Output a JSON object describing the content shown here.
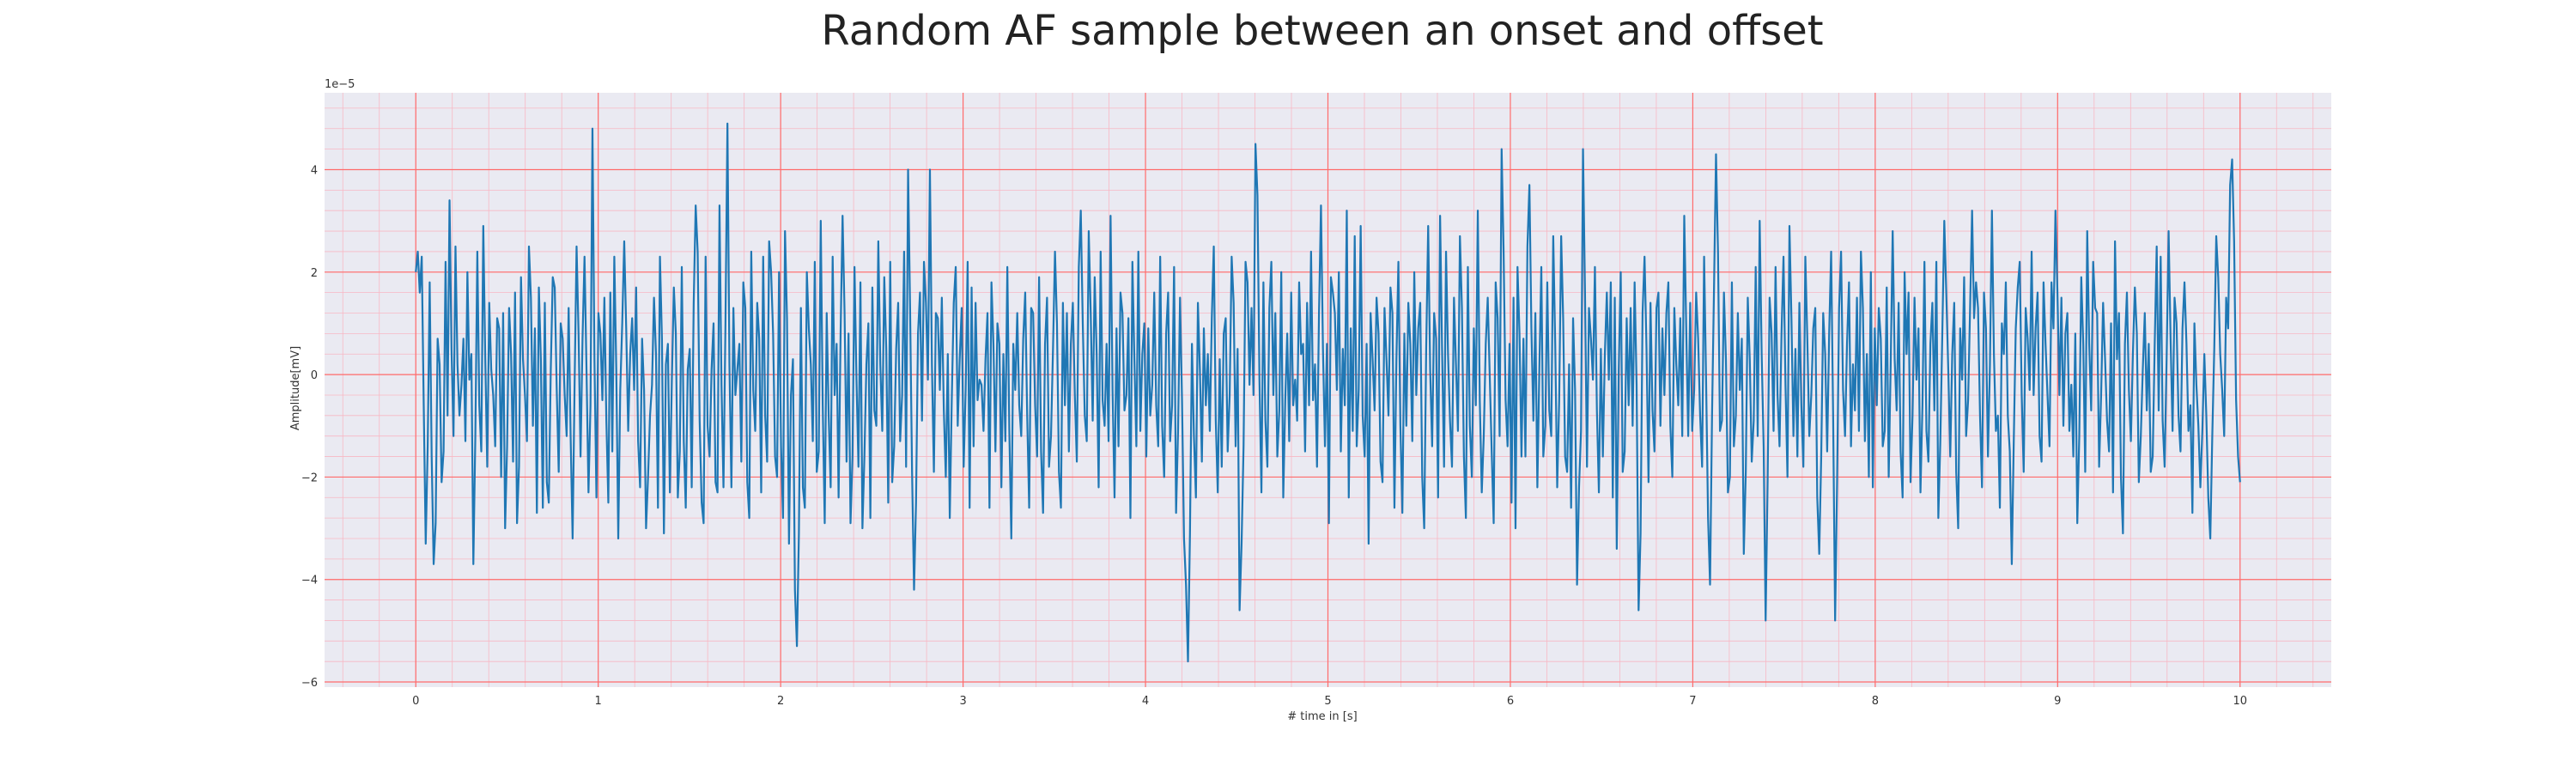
{
  "colors": {
    "plot_background": "#eaeaf2",
    "major_grid": "#ff6b6b",
    "minor_grid": "#f8b8c4",
    "line": "#1f77b4",
    "text": "#333333"
  },
  "chart_data": {
    "type": "line",
    "title": "Random AF sample between an onset and offset",
    "xlabel": "# time in [s]",
    "ylabel": "Amplitude[mV]",
    "y_offset_label": "1e−5",
    "grid": true,
    "minor_grid": true,
    "xlim": [
      -0.5,
      10.5
    ],
    "ylim": [
      -6.1,
      5.5
    ],
    "x_ticks": [
      0,
      1,
      2,
      3,
      4,
      5,
      6,
      7,
      8,
      9,
      10
    ],
    "x_tick_labels": [
      "0",
      "1",
      "2",
      "3",
      "4",
      "5",
      "6",
      "7",
      "8",
      "9",
      "10"
    ],
    "y_ticks": [
      -6,
      -4,
      -2,
      0,
      2,
      4
    ],
    "y_tick_labels": [
      "−6",
      "−4",
      "−2",
      "0",
      "2",
      "4"
    ],
    "series": [
      {
        "values_note_scale": "y values are in units of 1e-5",
        "x_start": 0,
        "x_end": 10,
        "y": [
          2.0,
          2.4,
          1.6,
          2.3,
          -0.6,
          -3.3,
          -1.4,
          1.8,
          -1.6,
          -3.7,
          -2.9,
          0.7,
          0.2,
          -2.1,
          -1.5,
          2.2,
          -0.8,
          3.4,
          0.5,
          -1.2,
          2.5,
          0.2,
          -0.8,
          -0.2,
          0.7,
          -1.3,
          2.0,
          -0.1,
          0.4,
          -3.7,
          -1.2,
          2.4,
          -0.6,
          -1.5,
          2.9,
          0.3,
          -1.8,
          1.4,
          0.1,
          -0.4,
          -1.4,
          1.1,
          0.9,
          -2.0,
          1.2,
          -3.0,
          -1.4,
          1.3,
          0.4,
          -1.7,
          1.6,
          -2.9,
          -1.8,
          1.9,
          0.3,
          -0.4,
          -1.3,
          2.5,
          1.5,
          -1.0,
          0.9,
          -2.7,
          1.7,
          0.3,
          -2.6,
          1.4,
          -2.1,
          -2.5,
          0.1,
          1.9,
          1.7,
          -0.3,
          -1.9,
          1.0,
          0.7,
          -0.4,
          -1.2,
          1.3,
          -1.2,
          -3.2,
          -0.2,
          2.5,
          0.8,
          -1.6,
          0.7,
          2.3,
          0.1,
          -2.3,
          -0.6,
          4.8,
          0.3,
          -2.4,
          1.2,
          0.8,
          -0.5,
          1.5,
          -0.9,
          -2.5,
          1.6,
          -1.5,
          2.3,
          0.1,
          -3.2,
          -0.3,
          1.0,
          2.6,
          0.9,
          -1.1,
          0.4,
          1.1,
          -0.3,
          1.7,
          -1.3,
          -2.2,
          0.7,
          -0.3,
          -3.0,
          -2.0,
          -0.8,
          -0.2,
          1.5,
          0.4,
          -2.6,
          2.3,
          0.7,
          -3.1,
          0.2,
          0.6,
          -2.3,
          -0.1,
          1.7,
          0.8,
          -2.4,
          -1.5,
          2.1,
          -1.3,
          -2.6,
          0.1,
          0.5,
          -2.2,
          1.4,
          3.3,
          2.4,
          -0.9,
          -2.5,
          -2.9,
          2.3,
          -1.0,
          -1.6,
          0.1,
          1.0,
          -2.1,
          -2.3,
          3.3,
          -0.2,
          -2.2,
          1.0,
          4.9,
          0.2,
          -2.2,
          1.3,
          -0.4,
          0.1,
          0.6,
          -1.7,
          1.8,
          1.3,
          -2.1,
          -2.8,
          2.4,
          -0.3,
          -1.1,
          1.4,
          0.7,
          -2.3,
          2.3,
          -0.8,
          -1.7,
          2.6,
          2.0,
          0.8,
          -1.6,
          -2.0,
          2.0,
          -1.4,
          -2.8,
          2.8,
          1.1,
          -3.3,
          -0.4,
          0.3,
          -4.2,
          -5.3,
          -3.1,
          1.3,
          -2.2,
          -2.6,
          2.0,
          0.9,
          0.2,
          -1.3,
          2.2,
          -1.9,
          -1.5,
          3.0,
          -0.6,
          -2.9,
          1.2,
          -0.8,
          -2.2,
          2.3,
          -0.4,
          0.6,
          -2.4,
          0.8,
          3.1,
          1.2,
          -1.7,
          0.8,
          -2.9,
          -1.6,
          2.1,
          -0.1,
          -1.8,
          1.8,
          -3.0,
          -1.6,
          0.2,
          1.0,
          -2.8,
          1.7,
          -0.7,
          -1.0,
          2.6,
          0.2,
          -1.1,
          1.9,
          0.5,
          -2.5,
          2.2,
          -2.1,
          -1.4,
          0.5,
          1.4,
          -1.3,
          -0.4,
          2.4,
          -1.8,
          4.0,
          1.3,
          -1.9,
          -4.2,
          -2.5,
          0.8,
          1.6,
          -0.9,
          2.2,
          1.4,
          -0.1,
          4.0,
          0.2,
          -1.9,
          1.2,
          1.1,
          -0.3,
          1.5,
          -0.7,
          -2.0,
          0.4,
          -2.8,
          -0.5,
          1.4,
          2.1,
          -1.0,
          0.3,
          1.3,
          -1.8,
          -0.3,
          2.2,
          -2.6,
          1.7,
          -1.4,
          1.4,
          -0.5,
          -0.1,
          -0.2,
          -1.1,
          0.3,
          1.2,
          -2.6,
          1.8,
          0.6,
          -1.5,
          1.0,
          0.6,
          -2.2,
          0.4,
          -1.3,
          2.1,
          -1.1,
          -3.2,
          0.6,
          -0.3,
          1.2,
          -0.6,
          -1.2,
          0.7,
          1.6,
          -0.8,
          -2.6,
          1.3,
          1.2,
          -0.6,
          -1.6,
          1.9,
          -1.5,
          -2.7,
          0.6,
          1.5,
          -1.8,
          -1.2,
          0.5,
          2.4,
          1.0,
          -1.9,
          -2.6,
          1.4,
          -0.6,
          1.2,
          -1.5,
          0.6,
          1.4,
          -0.4,
          -1.7,
          2.1,
          3.2,
          1.0,
          -0.8,
          -1.3,
          2.8,
          1.2,
          -0.9,
          1.9,
          0.4,
          -2.2,
          2.4,
          -0.5,
          -1.0,
          0.6,
          -1.3,
          3.1,
          -0.3,
          -2.4,
          0.9,
          -1.4,
          1.6,
          1.2,
          -0.7,
          -0.4,
          1.1,
          -2.8,
          2.2,
          0.3,
          -1.4,
          2.4,
          -1.1,
          0.4,
          1.0,
          -1.6,
          0.9,
          -0.8,
          -0.2,
          1.6,
          -0.6,
          -1.4,
          2.3,
          -1.0,
          -2.0,
          0.8,
          1.6,
          -1.3,
          -0.6,
          2.1,
          -2.7,
          -1.1,
          1.5,
          -0.5,
          -3.2,
          -4.1,
          -5.6,
          -3.1,
          0.6,
          -1.2,
          -2.4,
          1.4,
          0.1,
          -1.7,
          0.9,
          -0.6,
          0.4,
          -1.1,
          1.1,
          2.5,
          -0.9,
          -2.3,
          0.3,
          -1.8,
          0.8,
          1.1,
          -1.5,
          -0.4,
          2.3,
          1.4,
          -1.4,
          0.5,
          -4.6,
          -3.3,
          -1.4,
          2.2,
          1.8,
          -0.2,
          1.3,
          -0.4,
          4.5,
          3.5,
          -0.1,
          -2.3,
          1.8,
          -0.9,
          -1.8,
          1.3,
          2.2,
          -0.4,
          1.2,
          -1.6,
          -0.7,
          2.0,
          -2.4,
          -0.5,
          0.8,
          -1.3,
          1.6,
          -0.6,
          -0.1,
          -0.9,
          1.8,
          0.4,
          0.6,
          -1.5,
          1.4,
          -0.6,
          2.4,
          -0.5,
          0.2,
          -1.8,
          1.2,
          3.3,
          0.5,
          -1.4,
          0.6,
          -2.9,
          1.9,
          1.6,
          1.2,
          -0.3,
          2.0,
          -1.5,
          0.5,
          -0.6,
          3.2,
          -2.4,
          0.9,
          -1.1,
          2.7,
          -1.4,
          -0.3,
          2.9,
          -0.8,
          -1.6,
          0.6,
          -3.3,
          1.2,
          0.3,
          -0.7,
          1.5,
          0.8,
          -1.7,
          -2.1,
          1.3,
          0.3,
          -0.8,
          1.7,
          1.2,
          -2.6,
          0.3,
          2.2,
          -1.0,
          -2.7,
          0.8,
          -1.0,
          1.4,
          0.6,
          -1.3,
          2.0,
          -0.4,
          0.9,
          1.4,
          -2.0,
          -3.0,
          0.5,
          2.9,
          0.1,
          -1.4,
          1.2,
          0.7,
          -2.4,
          3.1,
          0.5,
          -1.8,
          2.4,
          0.4,
          -0.9,
          -1.8,
          1.5,
          0.2,
          -1.1,
          2.7,
          1.3,
          -1.6,
          -2.8,
          2.1,
          -1.0,
          -2.0,
          0.9,
          -0.6,
          3.2,
          -0.5,
          -2.3,
          -1.2,
          0.6,
          1.5,
          0.0,
          -1.5,
          -2.9,
          1.8,
          1.1,
          -1.2,
          4.4,
          2.4,
          -0.5,
          -1.4,
          0.6,
          -2.5,
          1.5,
          -3.0,
          2.1,
          0.8,
          -1.6,
          0.7,
          -1.6,
          2.5,
          3.7,
          0.9,
          -0.9,
          1.2,
          -2.2,
          0.1,
          2.1,
          -1.6,
          -1.0,
          1.8,
          -0.7,
          -1.2,
          2.7,
          0.6,
          -2.2,
          -0.5,
          2.7,
          1.1,
          -1.6,
          -1.9,
          0.2,
          -2.6,
          1.1,
          -0.3,
          -4.1,
          -2.2,
          -1.1,
          4.4,
          1.6,
          -1.8,
          1.3,
          0.7,
          -0.1,
          2.1,
          -0.7,
          -2.3,
          0.5,
          -1.6,
          0.4,
          1.6,
          -0.1,
          1.8,
          -2.4,
          1.5,
          -3.4,
          0.1,
          2.0,
          -1.9,
          -1.5,
          1.1,
          -0.6,
          1.3,
          -1.0,
          1.8,
          -0.2,
          -4.6,
          -3.1,
          1.2,
          2.3,
          0.5,
          -2.1,
          1.4,
          -0.7,
          -1.5,
          1.3,
          1.6,
          -1.0,
          0.9,
          -0.4,
          1.2,
          1.8,
          -1.0,
          -2.0,
          1.3,
          0.2,
          -0.6,
          1.1,
          -1.2,
          3.1,
          0.9,
          -1.2,
          1.4,
          -1.1,
          -0.3,
          1.6,
          0.7,
          -0.8,
          -1.8,
          2.3,
          -0.1,
          -2.8,
          -4.1,
          -0.8,
          1.7,
          4.3,
          2.4,
          -1.1,
          -0.9,
          1.6,
          0.3,
          -2.3,
          -2.0,
          1.8,
          -1.4,
          -0.8,
          1.2,
          -0.3,
          0.7,
          -3.5,
          -1.9,
          1.5,
          0.3,
          -1.7,
          -0.9,
          2.1,
          -1.2,
          3.0,
          0.4,
          -1.4,
          -4.8,
          -2.1,
          1.5,
          0.8,
          -1.1,
          2.1,
          -0.4,
          -1.4,
          0.8,
          2.3,
          -0.2,
          -2.0,
          2.9,
          1.1,
          -1.2,
          0.5,
          -1.6,
          1.4,
          -0.6,
          -1.8,
          2.3,
          0.7,
          -1.2,
          -0.4,
          0.9,
          1.3,
          -2.4,
          -3.5,
          -1.6,
          1.2,
          0.4,
          -1.5,
          0.8,
          2.4,
          -0.8,
          -4.8,
          -2.1,
          1.3,
          2.4,
          -0.3,
          -1.2,
          0.6,
          1.8,
          -1.4,
          0.2,
          -0.7,
          1.5,
          -1.1,
          2.4,
          1.3,
          -1.3,
          0.4,
          -2.0,
          2.0,
          -2.2,
          0.9,
          -0.6,
          1.3,
          0.7,
          -1.4,
          -1.1,
          1.7,
          -2.0,
          0.2,
          2.8,
          0.3,
          -0.7,
          1.4,
          -1.5,
          -2.4,
          2.0,
          0.4,
          1.6,
          -2.1,
          -0.8,
          1.5,
          -0.1,
          0.9,
          -2.3,
          -0.6,
          2.2,
          -1.1,
          -1.7,
          0.6,
          1.4,
          -0.7,
          2.2,
          -2.8,
          -1.3,
          0.8,
          3.0,
          1.6,
          0.1,
          -1.6,
          0.4,
          1.4,
          -1.9,
          -3.0,
          0.9,
          -0.1,
          1.9,
          -1.2,
          -0.5,
          1.3,
          3.2,
          1.1,
          1.8,
          1.3,
          -0.8,
          -2.2,
          1.6,
          0.9,
          -1.6,
          0.2,
          3.2,
          0.4,
          -1.1,
          -0.8,
          -2.6,
          1.0,
          0.4,
          1.8,
          -0.8,
          -1.5,
          -3.7,
          -1.3,
          0.9,
          1.7,
          2.2,
          -0.4,
          -1.9,
          1.3,
          0.7,
          -0.3,
          2.4,
          -0.4,
          0.9,
          1.6,
          -1.2,
          -1.7,
          1.8,
          0.6,
          -0.4,
          -1.4,
          1.8,
          0.9,
          3.2,
          1.6,
          -0.4,
          1.5,
          -1.0,
          0.8,
          1.2,
          -1.1,
          -0.2,
          -1.6,
          0.8,
          -2.9,
          -1.2,
          1.9,
          0.6,
          -1.9,
          2.8,
          0.6,
          -0.7,
          2.2,
          1.3,
          1.2,
          -1.8,
          -0.4,
          1.4,
          0.3,
          -0.9,
          -1.5,
          1.0,
          -2.3,
          2.6,
          0.3,
          1.2,
          -2.0,
          -3.1,
          0.6,
          1.6,
          -0.3,
          -1.3,
          0.4,
          1.7,
          0.8,
          -2.1,
          -1.2,
          0.1,
          1.2,
          -0.7,
          0.6,
          -1.9,
          -1.6,
          0.6,
          2.5,
          -0.7,
          2.3,
          -0.9,
          -1.8,
          0.3,
          2.8,
          0.7,
          -1.1,
          1.5,
          1.0,
          -0.8,
          -1.5,
          0.9,
          1.8,
          0.6,
          -1.1,
          -0.6,
          -2.7,
          1.0,
          -0.2,
          -1.0,
          -2.2,
          -1.1,
          0.4,
          -0.8,
          -2.4,
          -3.2,
          -1.2,
          0.5,
          2.7,
          1.9,
          0.4,
          -0.3,
          -1.2,
          1.5,
          0.9,
          3.7,
          4.2,
          2.6,
          -0.5,
          -1.6,
          -2.1
        ]
      }
    ]
  }
}
